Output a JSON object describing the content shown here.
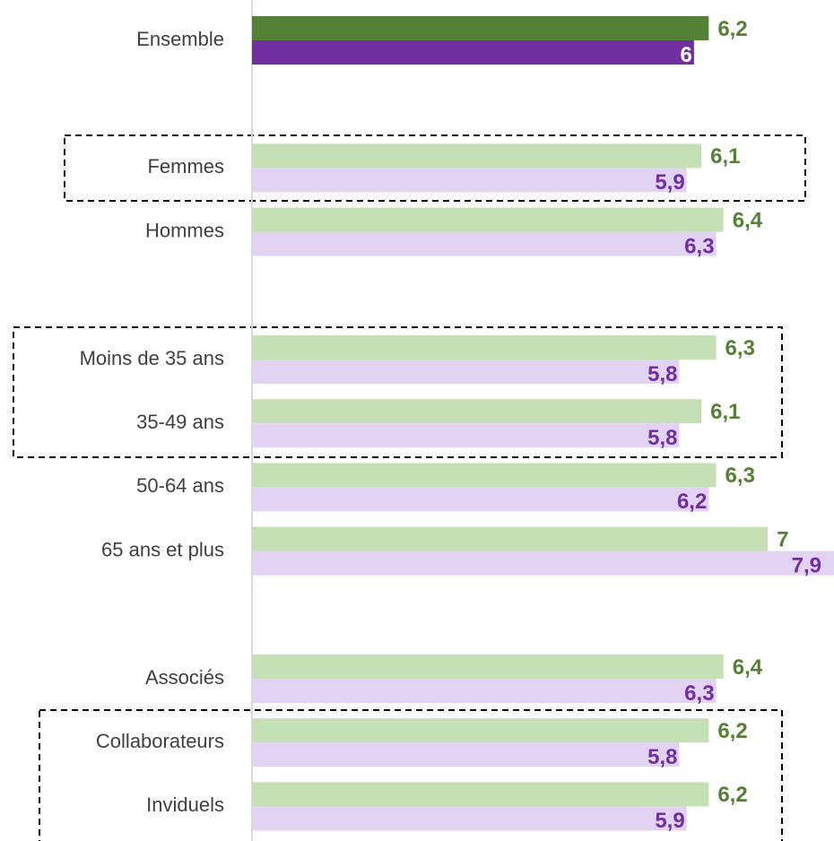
{
  "chart_data": {
    "type": "barh",
    "categories": [
      "Ensemble",
      null,
      "Femmes",
      "Hommes",
      null,
      "Moins de 35 ans",
      "35-49 ans",
      "50-64 ans",
      "65 ans et plus",
      null,
      "Associés",
      "Collaborateurs",
      "Inviduels"
    ],
    "xlim": [
      0,
      7.9
    ],
    "series": [
      {
        "colors": [
          "#538135",
          null,
          "#c5e0b4",
          "#c5e0b4",
          null,
          "#c5e0b4",
          "#c5e0b4",
          "#c5e0b4",
          "#c5e0b4",
          null,
          "#c5e0b4",
          "#c5e0b4",
          "#c5e0b4"
        ],
        "label_color": "#538135",
        "values": [
          6.2,
          null,
          6.1,
          6.4,
          null,
          6.3,
          6.1,
          6.3,
          7,
          null,
          6.4,
          6.2,
          6.2
        ],
        "value_labels": [
          "6,2",
          null,
          "6,1",
          "6,4",
          null,
          "6,3",
          "6,1",
          "6,3",
          "7",
          null,
          "6,4",
          "6,2",
          "6,2"
        ]
      },
      {
        "colors": [
          "#7030a0",
          null,
          "#e2d3f3",
          "#e2d3f3",
          null,
          "#e2d3f3",
          "#e2d3f3",
          "#e2d3f3",
          "#e2d3f3",
          null,
          "#e2d3f3",
          "#e2d3f3",
          "#e2d3f3"
        ],
        "label_colors": [
          "#ffffff",
          null,
          "#7030a0",
          "#7030a0",
          null,
          "#7030a0",
          "#7030a0",
          "#7030a0",
          "#7030a0",
          null,
          "#7030a0",
          "#7030a0",
          "#7030a0"
        ],
        "values": [
          6,
          null,
          5.9,
          6.3,
          null,
          5.8,
          5.8,
          6.2,
          7.9,
          null,
          6.3,
          5.8,
          5.9
        ],
        "value_labels": [
          "6",
          null,
          "5,9",
          "6,3",
          null,
          "5,8",
          "5,8",
          "6,2",
          "7,9",
          null,
          "6,3",
          "5,8",
          "5,9"
        ]
      }
    ]
  }
}
